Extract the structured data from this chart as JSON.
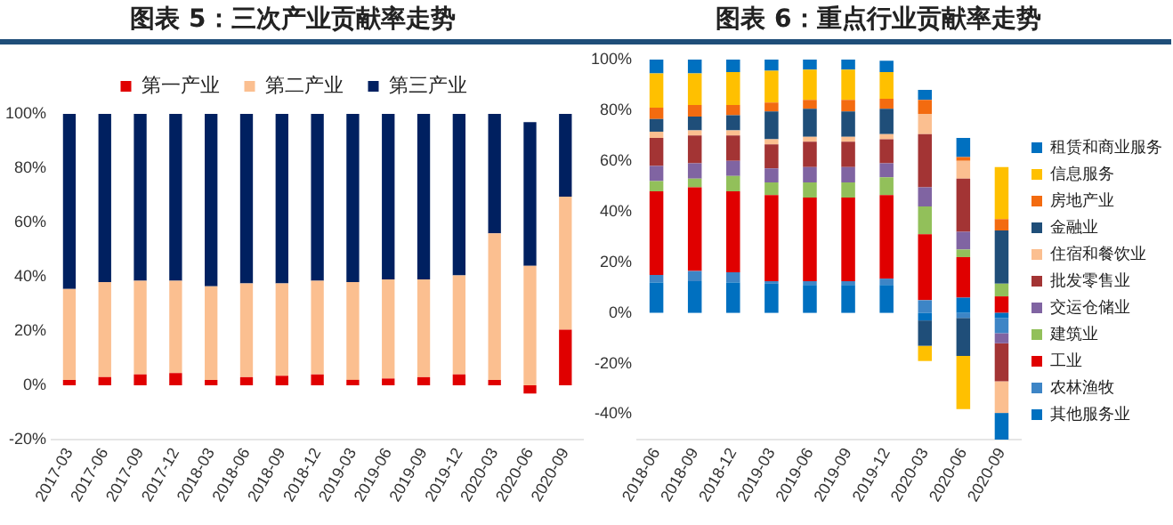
{
  "chart_data": [
    {
      "type": "bar",
      "title": "图表 5：三次产业贡献率走势",
      "stacked": true,
      "legend": "top",
      "grid": false,
      "categories": [
        "2017-03",
        "2017-06",
        "2017-09",
        "2017-12",
        "2018-03",
        "2018-06",
        "2018-09",
        "2018-12",
        "2019-03",
        "2019-06",
        "2019-09",
        "2019-12",
        "2020-03",
        "2020-06",
        "2020-09"
      ],
      "series": [
        {
          "name": "第一产业",
          "color": "#e00000",
          "values": [
            2,
            3,
            4,
            4.5,
            2,
            3,
            3.5,
            4,
            2,
            2.5,
            3,
            4,
            2,
            -3,
            20.5
          ]
        },
        {
          "name": "第二产业",
          "color": "#fbbf90",
          "values": [
            33.5,
            35,
            34.5,
            34,
            34.5,
            34.5,
            34,
            34.5,
            36,
            36.5,
            36,
            36.5,
            54,
            44,
            49
          ]
        },
        {
          "name": "第三产业",
          "color": "#002060",
          "values": [
            64.5,
            62,
            61.5,
            61.5,
            63.5,
            62.5,
            62.5,
            61.5,
            62,
            61,
            61,
            59.5,
            44,
            53,
            30.5
          ]
        }
      ],
      "ylim": [
        -20,
        100
      ],
      "yticks": [
        {
          "value": -20,
          "label": "-20%"
        },
        {
          "value": 0,
          "label": "0%"
        },
        {
          "value": 20,
          "label": "20%"
        },
        {
          "value": 40,
          "label": "40%"
        },
        {
          "value": 60,
          "label": "60%"
        },
        {
          "value": 80,
          "label": "80%"
        },
        {
          "value": 100,
          "label": "100%"
        }
      ]
    },
    {
      "type": "bar",
      "title": "图表 6：重点行业贡献率走势",
      "stacked": true,
      "legend": "right",
      "grid": false,
      "categories": [
        "2018-06",
        "2018-09",
        "2018-12",
        "2019-03",
        "2019-06",
        "2019-09",
        "2019-12",
        "2020-03",
        "2020-06",
        "2020-09"
      ],
      "series": [
        {
          "name": "其他服务业",
          "color": "#0070c0",
          "values": [
            12,
            12.5,
            12,
            11.5,
            11,
            11,
            11,
            -3,
            6,
            -2
          ]
        },
        {
          "name": "农林渔牧",
          "color": "#3d85c6",
          "values": [
            3,
            4,
            4,
            1,
            1.5,
            1.5,
            2.5,
            5,
            -2,
            -6
          ]
        },
        {
          "name": "工业",
          "color": "#e00000",
          "values": [
            33,
            33,
            32,
            34,
            33,
            33,
            33,
            26,
            16,
            6.5
          ]
        },
        {
          "name": "建筑业",
          "color": "#92c05a",
          "values": [
            4,
            3.5,
            6,
            5,
            6,
            6,
            7,
            11,
            3,
            5
          ]
        },
        {
          "name": "交运仓储业",
          "color": "#8064a2",
          "values": [
            6,
            6,
            6,
            5.5,
            6,
            6,
            5.5,
            7.5,
            7,
            -4
          ]
        },
        {
          "name": "批发零售业",
          "color": "#a33434",
          "values": [
            11,
            11,
            10,
            9.5,
            10,
            10,
            9.5,
            21,
            21,
            -15
          ]
        },
        {
          "name": "住宿和餐饮业",
          "color": "#fbbf90",
          "values": [
            2.5,
            2,
            2,
            2,
            2,
            2,
            2,
            8,
            7,
            -12.5
          ]
        },
        {
          "name": "金融业",
          "color": "#1f4e79",
          "values": [
            5,
            5.5,
            6,
            11,
            11,
            10,
            10,
            -10,
            -15,
            21
          ]
        },
        {
          "name": "房地产业",
          "color": "#f36b10",
          "values": [
            4.5,
            4.5,
            4,
            3.5,
            3.5,
            4.5,
            4,
            5.5,
            1.5,
            4.5
          ]
        },
        {
          "name": "信息服务",
          "color": "#ffc000",
          "values": [
            13.5,
            12.5,
            13,
            12.5,
            12,
            12,
            10.5,
            -6,
            -21,
            20.5
          ]
        },
        {
          "name": "租赁和商业服务",
          "color": "#0070c0",
          "values": [
            5.5,
            5.5,
            5,
            4.5,
            4,
            4,
            4.5,
            4,
            7.5,
            -10.5
          ]
        }
      ],
      "ylim": [
        -50,
        100
      ],
      "yticks": [
        {
          "value": -40,
          "label": "-40%"
        },
        {
          "value": -20,
          "label": "-20%"
        },
        {
          "value": 0,
          "label": "0%"
        },
        {
          "value": 20,
          "label": "20%"
        },
        {
          "value": 40,
          "label": "40%"
        },
        {
          "value": 60,
          "label": "60%"
        },
        {
          "value": 80,
          "label": "80%"
        },
        {
          "value": 100,
          "label": "100%"
        }
      ]
    }
  ]
}
